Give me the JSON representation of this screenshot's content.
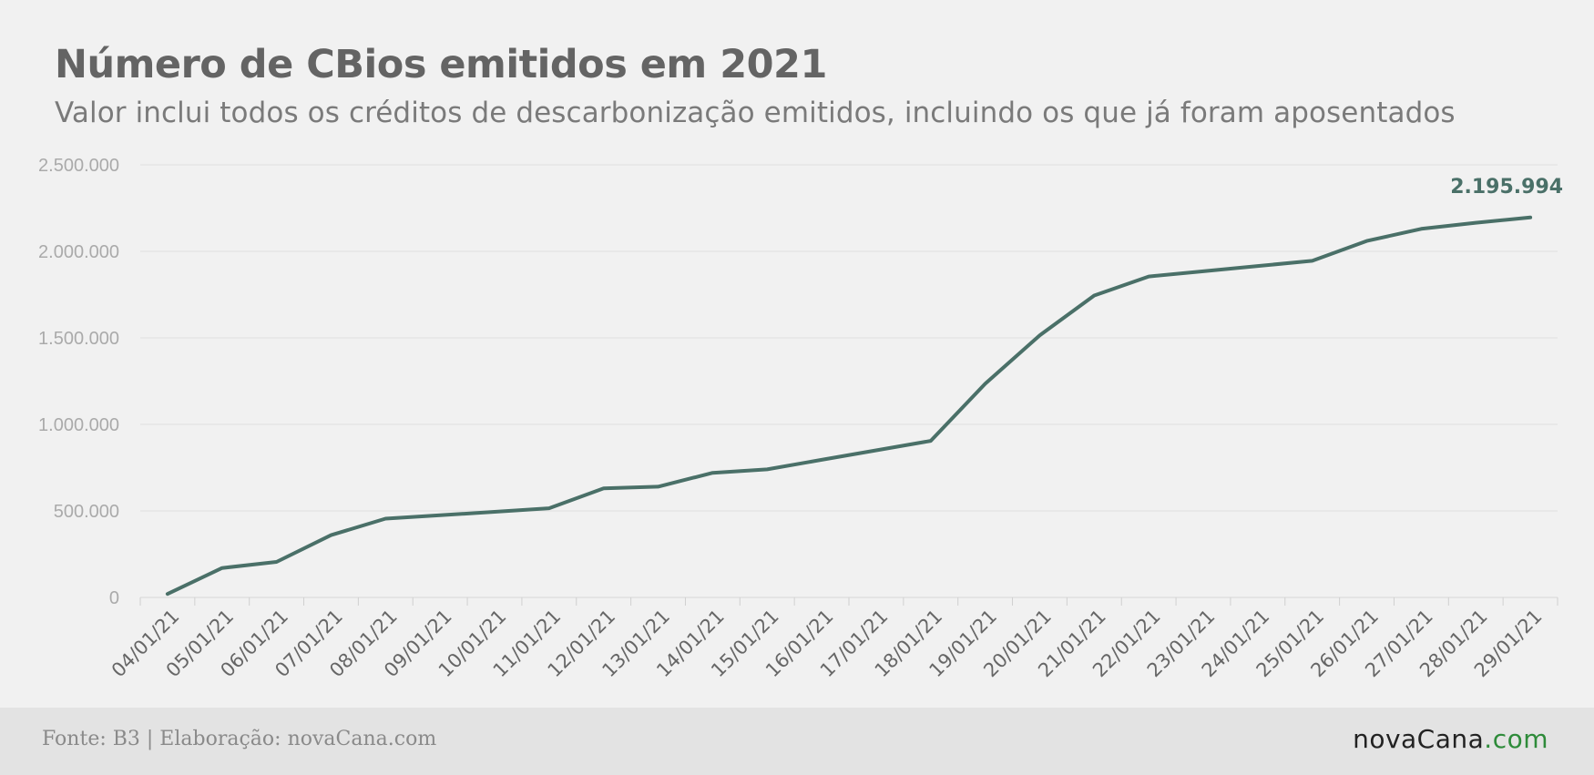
{
  "title": "Número de CBios emitidos em 2021",
  "subtitle": "Valor inclui todos os créditos de descarbonização emitidos, incluindo os que já foram aposentados",
  "footer": {
    "source": "Fonte: B3 | Elaboração: novaCana.com",
    "logo_main": "novaCana",
    "logo_tld": ".com"
  },
  "colors": {
    "line": "#4a7068",
    "grid": "#e0e0e0",
    "tick_text": "#aaaaaa",
    "date_text": "#666666",
    "logo_tld": "#2e8b3a"
  },
  "chart_data": {
    "type": "line",
    "title": "Número de CBios emitidos em 2021",
    "xlabel": "",
    "ylabel": "",
    "ylim": [
      0,
      2500000
    ],
    "yticks": [
      0,
      500000,
      1000000,
      1500000,
      2000000,
      2500000
    ],
    "ytick_labels": [
      "0",
      "500.000",
      "1.000.000",
      "1.500.000",
      "2.000.000",
      "2.500.000"
    ],
    "grid": true,
    "categories": [
      "04/01/21",
      "05/01/21",
      "06/01/21",
      "07/01/21",
      "08/01/21",
      "09/01/21",
      "10/01/21",
      "11/01/21",
      "12/01/21",
      "13/01/21",
      "14/01/21",
      "15/01/21",
      "16/01/21",
      "17/01/21",
      "18/01/21",
      "19/01/21",
      "20/01/21",
      "21/01/21",
      "22/01/21",
      "23/01/21",
      "24/01/21",
      "25/01/21",
      "26/01/21",
      "27/01/21",
      "28/01/21",
      "29/01/21"
    ],
    "values": [
      20000,
      170000,
      205000,
      360000,
      455000,
      475000,
      495000,
      515000,
      630000,
      640000,
      720000,
      740000,
      795000,
      850000,
      905000,
      1235000,
      1515000,
      1745000,
      1855000,
      1885000,
      1915000,
      1945000,
      2060000,
      2130000,
      2165000,
      2195994
    ],
    "end_label": "2.195.994"
  }
}
